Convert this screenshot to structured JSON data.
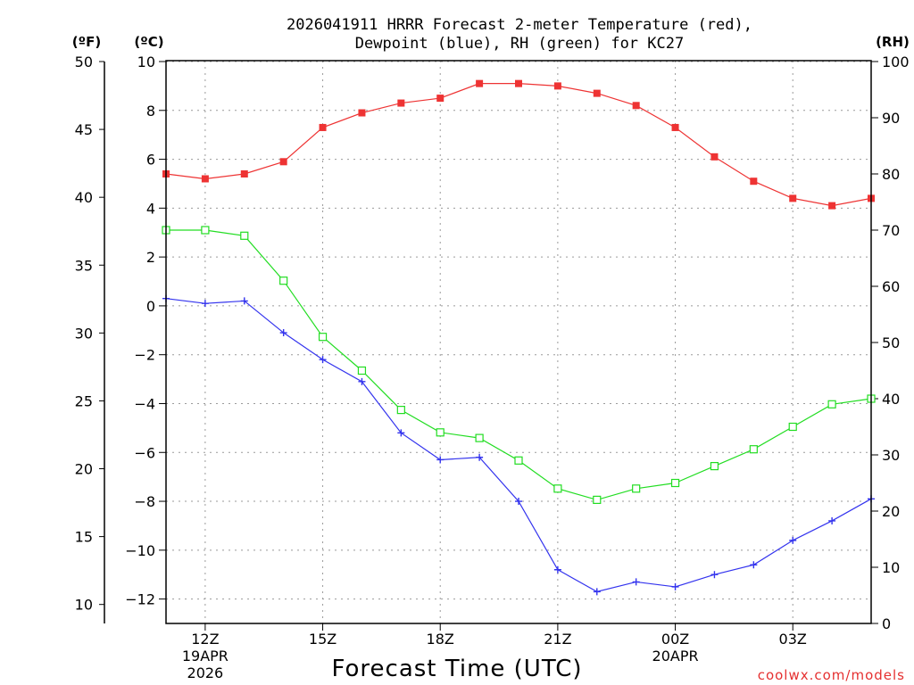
{
  "chart_data": {
    "type": "line",
    "title_line1": "2026041911 HRRR Forecast 2-meter Temperature (red),",
    "title_line2": "Dewpoint (blue), RH (green) for KC27",
    "xlabel": "Forecast Time (UTC)",
    "watermark": "coolwx.com/models",
    "axis_units": {
      "left_outer": "(ºF)",
      "left_inner": "(ºC)",
      "right": "(RH)"
    },
    "x": [
      11,
      12,
      13,
      14,
      15,
      16,
      17,
      18,
      19,
      20,
      21,
      22,
      23,
      24,
      25,
      26,
      27,
      28,
      29
    ],
    "xlim": [
      11,
      29
    ],
    "x_ticks": [
      {
        "x": 12,
        "label": "12Z",
        "sub1": "19APR",
        "sub2": "2026"
      },
      {
        "x": 15,
        "label": "15Z",
        "sub1": "",
        "sub2": ""
      },
      {
        "x": 18,
        "label": "18Z",
        "sub1": "",
        "sub2": ""
      },
      {
        "x": 21,
        "label": "21Z",
        "sub1": "",
        "sub2": ""
      },
      {
        "x": 24,
        "label": "00Z",
        "sub1": "20APR",
        "sub2": ""
      },
      {
        "x": 27,
        "label": "03Z",
        "sub1": "",
        "sub2": ""
      }
    ],
    "celsius_axis": {
      "range": [
        -13,
        10
      ],
      "ticks": [
        10,
        8,
        6,
        4,
        2,
        0,
        -2,
        -4,
        -6,
        -8,
        -10,
        -12
      ]
    },
    "fahrenheit_axis": {
      "ticks": [
        50,
        45,
        40,
        35,
        30,
        25,
        20,
        15,
        10
      ]
    },
    "rh_axis": {
      "range": [
        0,
        100
      ],
      "ticks": [
        100,
        90,
        80,
        70,
        60,
        50,
        40,
        30,
        20,
        10,
        0
      ]
    },
    "series": [
      {
        "name": "Temperature",
        "unit": "C",
        "color": "#ee3333",
        "marker": "filled-square",
        "values": [
          5.4,
          5.2,
          5.4,
          5.9,
          7.3,
          7.9,
          8.3,
          8.5,
          9.1,
          9.1,
          9.0,
          8.7,
          8.2,
          7.3,
          6.1,
          5.1,
          4.4,
          4.1,
          4.4
        ]
      },
      {
        "name": "Dewpoint",
        "unit": "C",
        "color": "#3333ee",
        "marker": "plus",
        "values": [
          0.3,
          0.1,
          0.2,
          -1.1,
          -2.2,
          -3.1,
          -5.2,
          -6.3,
          -6.2,
          -8.0,
          -10.8,
          -11.7,
          -11.3,
          -11.5,
          -11.0,
          -10.6,
          -9.6,
          -8.8,
          -7.9
        ]
      },
      {
        "name": "RH",
        "unit": "%",
        "color": "#22dd22",
        "marker": "open-square",
        "values": [
          70,
          70,
          69,
          61,
          51,
          45,
          38,
          34,
          33,
          29,
          24,
          22,
          24,
          25,
          28,
          31,
          35,
          39,
          40
        ]
      }
    ]
  }
}
